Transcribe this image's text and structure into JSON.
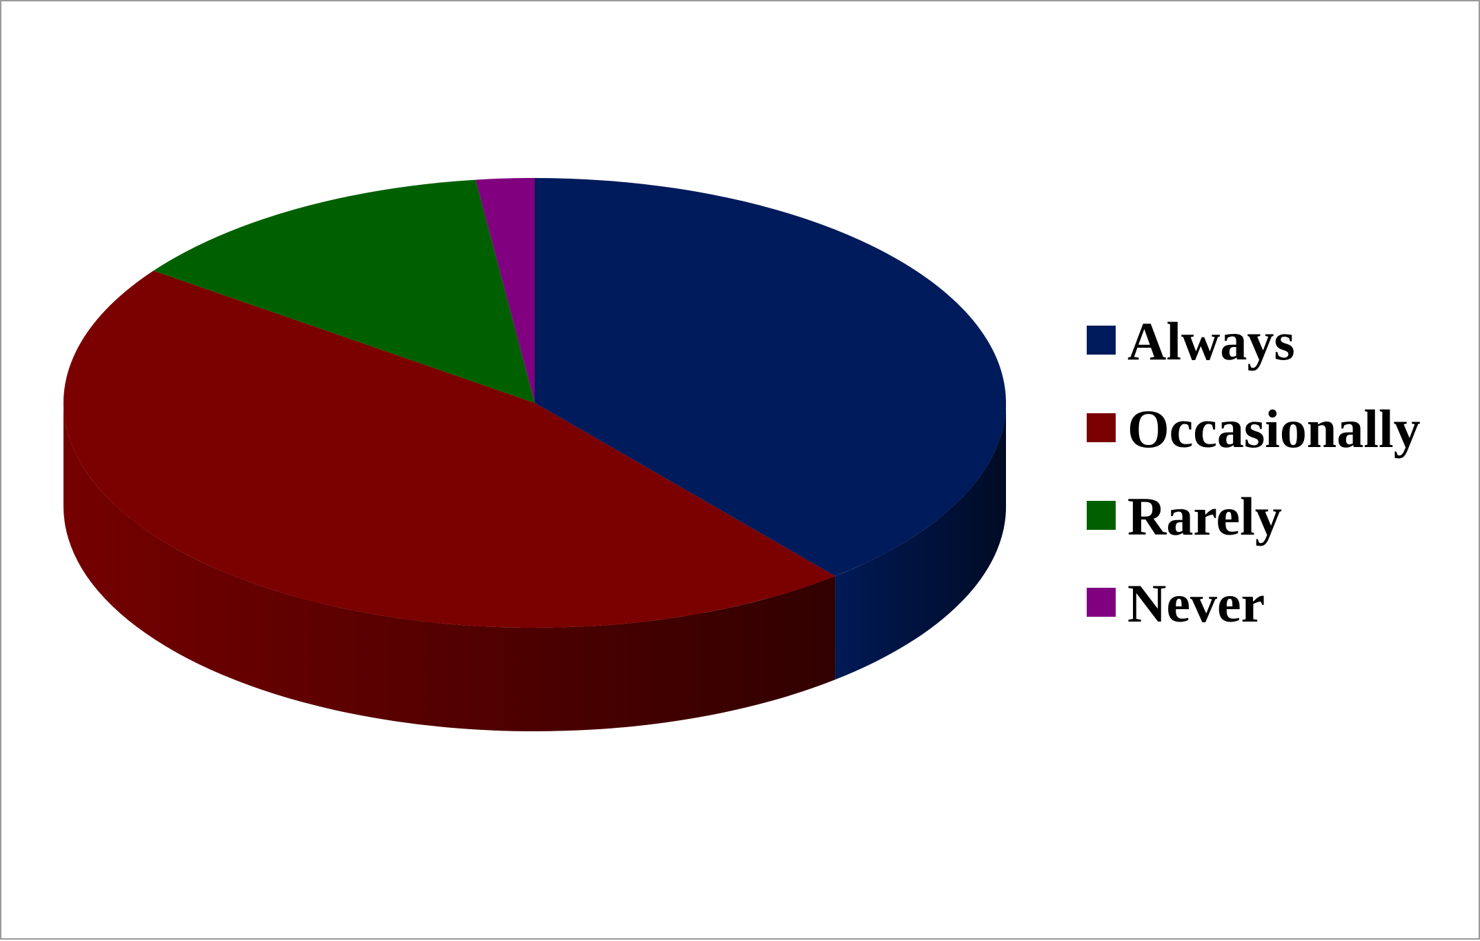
{
  "chart_data": {
    "type": "pie",
    "style": "3d",
    "title": "",
    "categories": [
      "Always",
      "Occasionally",
      "Rarely",
      "Never"
    ],
    "values": [
      39,
      46,
      13,
      2
    ],
    "colors": [
      "#001b5b",
      "#7b0000",
      "#006000",
      "#800080"
    ],
    "legend": {
      "position": "right",
      "entries": [
        "Always",
        "Occasionally",
        "Rarely",
        "Never"
      ]
    }
  }
}
